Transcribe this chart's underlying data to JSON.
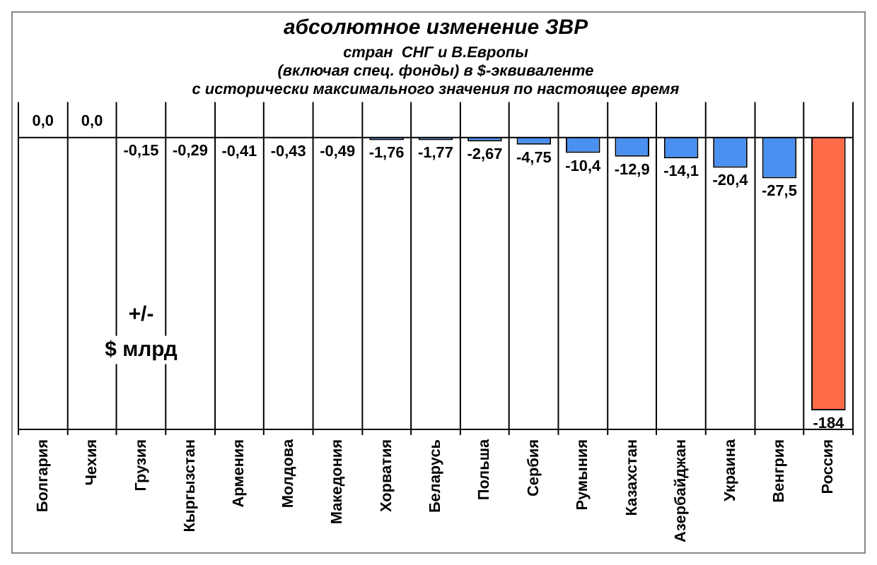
{
  "chart_data": {
    "type": "bar",
    "title": "абсолютное изменение ЗВР",
    "subtitle": "стран  СНГ и В.Европы\n(включая спец. фонды) в $-эквиваленте\nс исторически максимального значения по настоящее время",
    "ylabel": "+/-\n$ млрд",
    "categories": [
      "Болгария",
      "Чехия",
      "Грузия",
      "Кыргызстан",
      "Армения",
      "Молдова",
      "Македония",
      "Хорватия",
      "Беларусь",
      "Польша",
      "Сербия",
      "Румыния",
      "Казахстан",
      "Азербайджан",
      "Украина",
      "Венгрия",
      "Россия"
    ],
    "values": [
      0,
      0,
      -0.15,
      -0.29,
      -0.41,
      -0.43,
      -0.49,
      -1.76,
      -1.77,
      -2.67,
      -4.75,
      -10.4,
      -12.9,
      -14.1,
      -20.4,
      -27.5,
      -184
    ],
    "value_labels": [
      "0,0",
      "0,0",
      "-0,15",
      "-0,29",
      "-0,41",
      "-0,43",
      "-0,49",
      "-1,76",
      "-1,77",
      "-2,67",
      "-4,75",
      "-10,4",
      "-12,9",
      "-14,1",
      "-20,4",
      "-27,5",
      "-184"
    ],
    "colors": [
      "#4a90f0",
      "#4a90f0",
      "#4a90f0",
      "#4a90f0",
      "#4a90f0",
      "#4a90f0",
      "#4a90f0",
      "#4a90f0",
      "#4a90f0",
      "#4a90f0",
      "#4a90f0",
      "#4a90f0",
      "#4a90f0",
      "#4a90f0",
      "#4a90f0",
      "#4a90f0",
      "#ff6a48"
    ],
    "grid": "x",
    "legend": false
  }
}
